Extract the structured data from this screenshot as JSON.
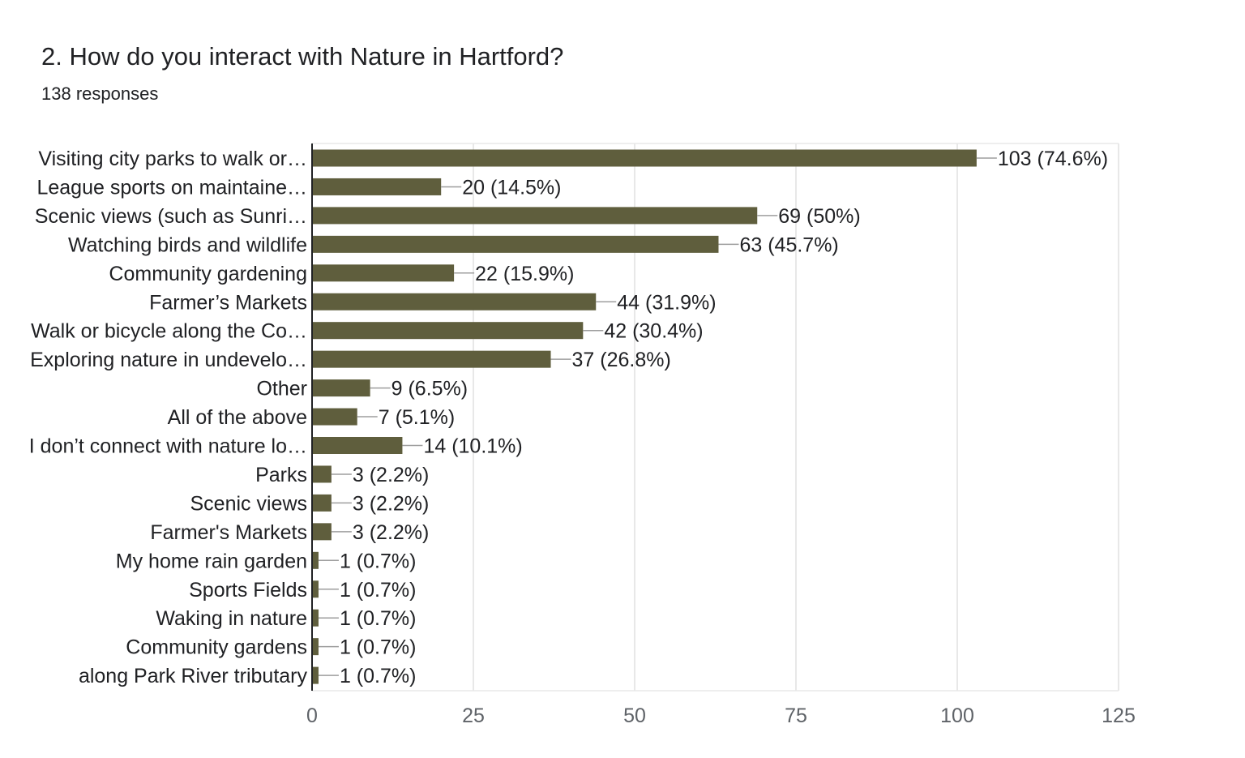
{
  "question": {
    "title": "2. How do you interact with Nature in Hartford?",
    "responses": "138 responses"
  },
  "colors": {
    "bar": "#5f5e3d",
    "gridline": "#e8e8e8",
    "axis": "#202124",
    "leader": "#9e9e9e",
    "text": "#202124",
    "tick_text": "#5f6368"
  },
  "chart_data": {
    "type": "bar",
    "orientation": "horizontal",
    "categories": [
      "Visiting city parks to walk or…",
      "League sports on maintaine…",
      "Scenic views (such as Sunri…",
      "Watching birds and wildlife",
      "Community gardening",
      "Farmer’s Markets",
      "Walk or bicycle along the Co…",
      "Exploring nature in undevelo…",
      "Other",
      "All of the above",
      "I don’t connect with nature lo…",
      "Parks",
      "Scenic views",
      "Farmer's Markets",
      "My home rain garden",
      "Sports Fields",
      "Waking in nature",
      "Community gardens",
      "along Park River tributary"
    ],
    "values": [
      103,
      20,
      69,
      63,
      22,
      44,
      42,
      37,
      9,
      7,
      14,
      3,
      3,
      3,
      1,
      1,
      1,
      1,
      1
    ],
    "value_labels": [
      "103 (74.6%)",
      "20 (14.5%)",
      "69 (50%)",
      "63 (45.7%)",
      "22 (15.9%)",
      "44 (31.9%)",
      "42 (30.4%)",
      "37 (26.8%)",
      "9 (6.5%)",
      "7 (5.1%)",
      "14 (10.1%)",
      "3 (2.2%)",
      "3 (2.2%)",
      "3 (2.2%)",
      "1 (0.7%)",
      "1 (0.7%)",
      "1 (0.7%)",
      "1 (0.7%)",
      "1 (0.7%)"
    ],
    "xlim": [
      0,
      125
    ],
    "xticks": [
      0,
      25,
      50,
      75,
      100,
      125
    ],
    "xtick_labels": [
      "0",
      "25",
      "50",
      "75",
      "100",
      "125"
    ],
    "grid": true,
    "legend": false
  }
}
